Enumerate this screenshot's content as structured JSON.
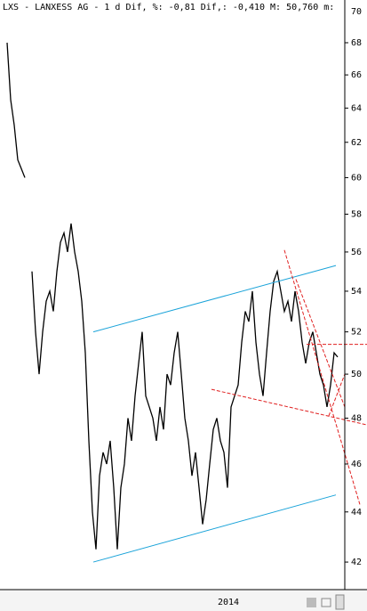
{
  "chart_data": {
    "type": "line",
    "title": "LXS - LANXESS AG -  1 d Dif, %: -0,81 Dif,: -0,410 M: 50,760 m:",
    "categories": [
      null,
      null,
      null,
      null,
      null,
      null,
      null,
      null,
      null,
      null,
      null,
      null,
      null,
      null,
      null,
      null,
      null,
      null,
      null,
      null,
      null,
      null,
      null,
      null,
      null,
      null,
      null,
      null,
      null,
      null,
      null,
      null,
      null,
      null,
      null,
      null,
      null,
      null,
      null,
      null,
      null,
      null,
      null,
      null,
      null,
      null,
      null,
      null,
      null,
      null,
      null,
      null,
      null,
      null,
      null,
      null,
      null,
      null,
      null,
      "2014",
      null,
      null,
      null,
      null,
      null,
      null,
      null,
      null,
      null,
      null,
      null,
      null,
      null,
      null,
      null,
      null,
      null,
      null,
      null,
      null,
      null,
      null,
      null,
      null,
      null,
      null,
      null,
      null,
      null,
      null,
      null,
      null,
      null,
      null
    ],
    "values": [
      68,
      64.5,
      63,
      61,
      60.5,
      60,
      null,
      55,
      52,
      50,
      52,
      53.5,
      54,
      53,
      55,
      56.5,
      57,
      56,
      57.5,
      56,
      55,
      53.5,
      51,
      47,
      44,
      42.5,
      45.5,
      46.5,
      46,
      47,
      45,
      42.5,
      45,
      46,
      48,
      47,
      49,
      50.5,
      52,
      49,
      48.5,
      48,
      47,
      48.5,
      47.5,
      50,
      49.5,
      51,
      52,
      50,
      48,
      47,
      45.5,
      46.5,
      45,
      43.5,
      44.5,
      46,
      47.5,
      48,
      47,
      46.5,
      45,
      48.5,
      49,
      49.5,
      51.5,
      53,
      52.5,
      54,
      51.5,
      50,
      49,
      51,
      53,
      54.5,
      55,
      54,
      53,
      53.5,
      52.5,
      54,
      53,
      51.5,
      50.5,
      51.5,
      52,
      51,
      50,
      49.5,
      48.5,
      49.5,
      51,
      50.8
    ],
    "color": "#000000",
    "log_scale": true,
    "ylim": [
      40.94,
      70.75
    ],
    "yticks": [
      42,
      44,
      46,
      48,
      50,
      52,
      54,
      56,
      58,
      60,
      62,
      64,
      66,
      68,
      70
    ],
    "trendlines": [
      {
        "color": "#1aa3d9",
        "dashed": false,
        "points": [
          [
            24.25,
            52.0
          ],
          [
            92.5,
            55.3
          ]
        ]
      },
      {
        "color": "#1aa3d9",
        "dashed": false,
        "points": [
          [
            24.25,
            42.0
          ],
          [
            92.5,
            44.7
          ]
        ]
      },
      {
        "color": "#e02020",
        "dashed": true,
        "points": [
          [
            57.5,
            49.3
          ],
          [
            101.25,
            47.7
          ]
        ]
      },
      {
        "color": "#e02020",
        "dashed": true,
        "points": [
          [
            78,
            56.1
          ],
          [
            99.25,
            44.3
          ]
        ]
      },
      {
        "color": "#e02020",
        "dashed": true,
        "points": [
          [
            81.25,
            54.6
          ],
          [
            95,
            48.5
          ]
        ]
      },
      {
        "color": "#e02020",
        "dashed": true,
        "points": [
          [
            90.5,
            48.1
          ],
          [
            95,
            50.0
          ]
        ]
      },
      {
        "color": "#e02020",
        "dashed": true,
        "points": [
          [
            84.25,
            51.4
          ],
          [
            101.25,
            51.4
          ]
        ]
      }
    ]
  }
}
